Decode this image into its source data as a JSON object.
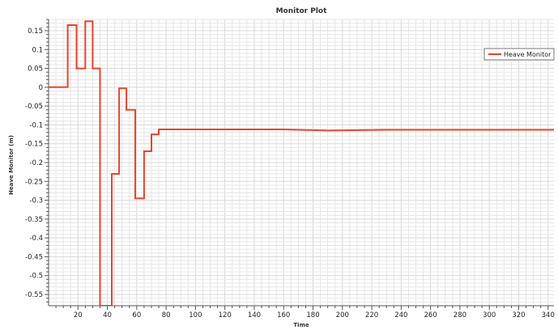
{
  "chart_data": {
    "type": "line",
    "title": "Monitor Plot",
    "xlabel": "Time",
    "ylabel": "Heave Monitor (m)",
    "xlim": [
      0,
      344
    ],
    "ylim": [
      -0.58,
      0.18
    ],
    "x_ticks": [
      20,
      40,
      60,
      80,
      100,
      120,
      140,
      160,
      180,
      200,
      220,
      240,
      260,
      280,
      300,
      320,
      340
    ],
    "y_ticks": [
      0.15,
      0.1,
      0.05,
      0,
      -0.05,
      -0.1,
      -0.15,
      -0.2,
      -0.25,
      -0.3,
      -0.35,
      -0.4,
      -0.45,
      -0.5,
      -0.55
    ],
    "grid": true,
    "legend_position": "top-right",
    "colors": {
      "series": "#e8442d",
      "grid": "#e6e6e6",
      "axis": "#555555"
    },
    "series": [
      {
        "name": "Heave Monitor",
        "step": true,
        "x": [
          0,
          13,
          13,
          19,
          19,
          25,
          25,
          30,
          30,
          35,
          35,
          43,
          43,
          48,
          48,
          53,
          53,
          59,
          59,
          65,
          65,
          70,
          70,
          75,
          75,
          79,
          79,
          120,
          160,
          190,
          230,
          344
        ],
        "y": [
          0,
          0,
          0.165,
          0.165,
          0.05,
          0.05,
          0.175,
          0.175,
          0.05,
          0.05,
          -0.58,
          -0.58,
          -0.23,
          -0.23,
          -0.003,
          -0.003,
          -0.06,
          -0.06,
          -0.295,
          -0.295,
          -0.17,
          -0.17,
          -0.125,
          -0.125,
          -0.112,
          -0.112,
          -0.112,
          -0.112,
          -0.112,
          -0.115,
          -0.113,
          -0.113
        ]
      }
    ]
  }
}
